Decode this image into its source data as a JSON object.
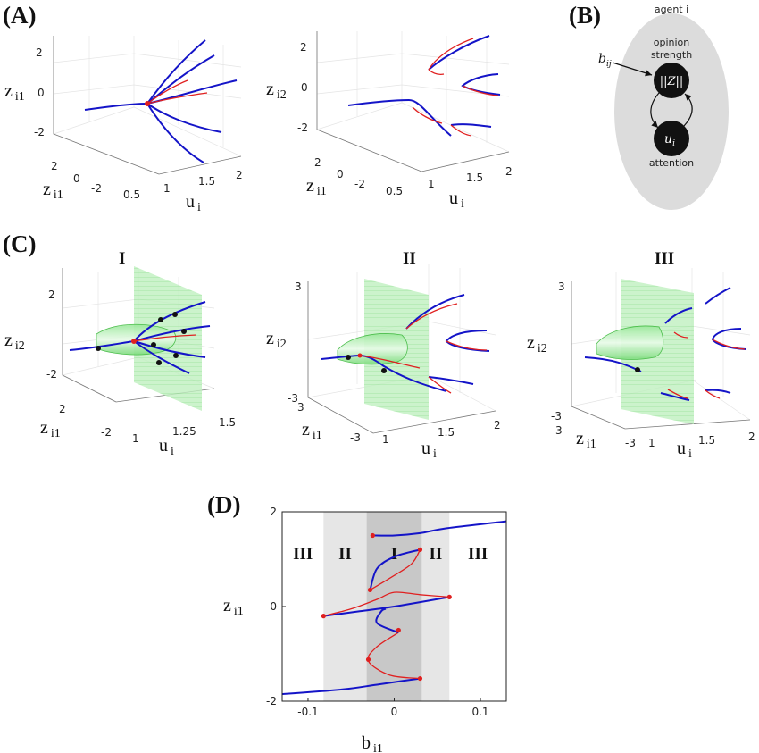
{
  "panels": {
    "A": "(A)",
    "B": "(B)",
    "C": "(C)",
    "D": "(D)"
  },
  "diagram_B": {
    "agent_label": "agent i",
    "top_caption": "opinion\nstrength",
    "top_node": "||Z||",
    "bottom_node": "u",
    "bottom_node_sub": "i",
    "bottom_caption": "attention",
    "input_label": "b",
    "input_sub": "ij",
    "colors": {
      "ellipse": "#dcdcdc",
      "node": "#111111"
    }
  },
  "colors": {
    "stable": "#1414c8",
    "unstable": "#e02020",
    "surface": "#5cd65c",
    "regionI": "#c8c8c8",
    "regionII": "#e6e6e6"
  },
  "chart_data": [
    {
      "id": "A-left",
      "type": "line",
      "zlabel": "z",
      "zlabel_sub": "i1",
      "ylabel": "z",
      "ylabel_sub": "i1",
      "xlabel": "u",
      "xlabel_sub": "i",
      "z_ticks": [
        "2",
        "0",
        "-2"
      ],
      "y_ticks": [
        "2",
        "0",
        "-2"
      ],
      "x_ticks": [
        "0.5",
        "1",
        "1.5",
        "2"
      ]
    },
    {
      "id": "A-right",
      "type": "line",
      "zlabel": "z",
      "zlabel_sub": "i2",
      "ylabel": "z",
      "ylabel_sub": "i1",
      "xlabel": "u",
      "xlabel_sub": "i",
      "z_ticks": [
        "2",
        "0",
        "-2"
      ],
      "y_ticks": [
        "2",
        "0",
        "-2"
      ],
      "x_ticks": [
        "0.5",
        "1",
        "1.5",
        "2"
      ]
    },
    {
      "id": "C-I",
      "type": "line",
      "title": "I",
      "zlabel": "z",
      "zlabel_sub": "i2",
      "ylabel": "z",
      "ylabel_sub": "i1",
      "xlabel": "u",
      "xlabel_sub": "i",
      "z_ticks": [
        "2",
        "-2"
      ],
      "y_ticks": [
        "2",
        "-2"
      ],
      "x_ticks": [
        "1",
        "1.25",
        "1.5"
      ]
    },
    {
      "id": "C-II",
      "type": "line",
      "title": "II",
      "zlabel": "z",
      "zlabel_sub": "i2",
      "ylabel": "z",
      "ylabel_sub": "i1",
      "xlabel": "u",
      "xlabel_sub": "i",
      "z_ticks": [
        "3",
        "-3"
      ],
      "y_ticks": [
        "3",
        "-3"
      ],
      "x_ticks": [
        "1",
        "1.5",
        "2"
      ]
    },
    {
      "id": "C-III",
      "type": "line",
      "title": "III",
      "zlabel": "z",
      "zlabel_sub": "i2",
      "ylabel": "z",
      "ylabel_sub": "i1",
      "xlabel": "u",
      "xlabel_sub": "i",
      "z_ticks": [
        "3",
        "-3"
      ],
      "y_ticks": [
        "3",
        "-3"
      ],
      "x_ticks": [
        "1",
        "1.5",
        "2"
      ],
      "y_tick_left": "3",
      "y_tick_right": "-3"
    },
    {
      "id": "D",
      "type": "line",
      "xlabel": "b",
      "xlabel_sub": "i1",
      "ylabel": "z",
      "ylabel_sub": "i1",
      "xlim": [
        -0.13,
        0.13
      ],
      "ylim": [
        -2,
        2
      ],
      "x_ticks": [
        -0.1,
        0,
        0.1
      ],
      "x_tick_labels": [
        "-0.1",
        "0",
        "0.1"
      ],
      "y_ticks": [
        -2,
        0,
        2
      ],
      "y_tick_labels": [
        "-2",
        "0",
        "2"
      ],
      "regions": [
        {
          "label": "III",
          "x0": -0.13,
          "x1": -0.082,
          "shade": "none"
        },
        {
          "label": "II",
          "x0": -0.082,
          "x1": -0.032,
          "shade": "light"
        },
        {
          "label": "I",
          "x0": -0.032,
          "x1": 0.032,
          "shade": "dark"
        },
        {
          "label": "II",
          "x0": 0.032,
          "x1": 0.064,
          "shade": "light"
        },
        {
          "label": "III",
          "x0": 0.064,
          "x1": 0.13,
          "shade": "none"
        }
      ],
      "series": [
        {
          "stability": "stable",
          "x": [
            -0.13,
            -0.06,
            -0.02,
            0.01,
            0.03
          ],
          "y": [
            -1.85,
            -1.75,
            -1.65,
            -1.57,
            -1.52
          ]
        },
        {
          "stability": "unstable",
          "x": [
            0.03,
            -0.005,
            -0.03,
            -0.02,
            0.005
          ],
          "y": [
            -1.52,
            -1.45,
            -1.15,
            -0.85,
            -0.55
          ]
        },
        {
          "stability": "stable",
          "x": [
            0.005,
            -0.02,
            -0.015,
            -0.01
          ],
          "y": [
            -0.55,
            -0.35,
            -0.1,
            -0.05
          ]
        },
        {
          "stability": "stable",
          "x": [
            -0.082,
            -0.04,
            0.0,
            0.064
          ],
          "y": [
            -0.2,
            -0.1,
            0.0,
            0.2
          ]
        },
        {
          "stability": "unstable",
          "x": [
            -0.082,
            -0.05,
            -0.02,
            0.0,
            0.03,
            0.064
          ],
          "y": [
            -0.2,
            -0.05,
            0.15,
            0.3,
            0.25,
            0.2
          ]
        },
        {
          "stability": "unstable",
          "x": [
            -0.028,
            -0.005,
            0.02,
            0.03
          ],
          "y": [
            0.35,
            0.6,
            0.9,
            1.2
          ]
        },
        {
          "stability": "stable",
          "x": [
            -0.028,
            -0.02,
            0.0,
            0.03
          ],
          "y": [
            0.35,
            0.8,
            1.05,
            1.2
          ]
        },
        {
          "stability": "stable",
          "x": [
            -0.025,
            0.0,
            0.03,
            0.06,
            0.13
          ],
          "y": [
            1.5,
            1.5,
            1.55,
            1.65,
            1.8
          ]
        }
      ],
      "fold_points": [
        {
          "x": -0.025,
          "y": 1.5
        },
        {
          "x": 0.03,
          "y": 1.2
        },
        {
          "x": -0.028,
          "y": 0.35
        },
        {
          "x": 0.064,
          "y": 0.2
        },
        {
          "x": -0.082,
          "y": -0.2
        },
        {
          "x": 0.005,
          "y": -0.5
        },
        {
          "x": -0.03,
          "y": -1.12
        },
        {
          "x": 0.03,
          "y": -1.52
        }
      ]
    }
  ]
}
